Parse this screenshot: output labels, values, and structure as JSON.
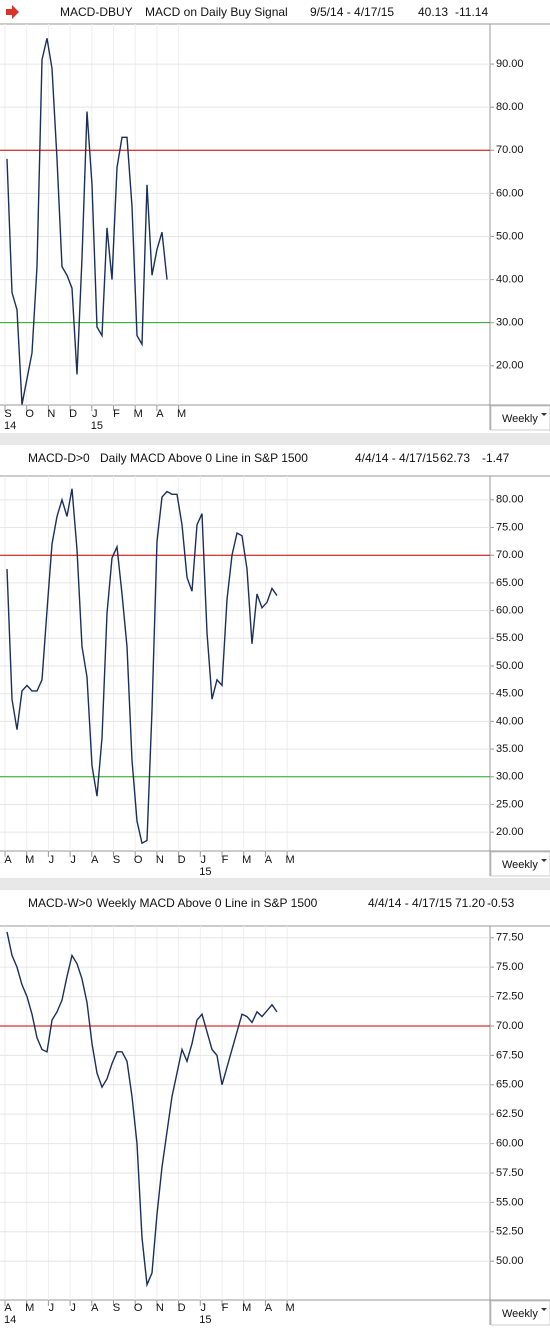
{
  "chart_data": [
    {
      "type": "line",
      "title": "MACD-DBUY",
      "subtitle": "MACD on Daily Buy Signal",
      "date_range": "9/5/14 - 4/17/15",
      "last": "40.13",
      "change": "-11.14",
      "period": "Weekly",
      "months": [
        "S",
        "O",
        "N",
        "D",
        "J",
        "F",
        "M",
        "A",
        "M"
      ],
      "years": [
        {
          "label": "14",
          "month": 0
        },
        {
          "label": "15",
          "month": 4
        }
      ],
      "series": [
        {
          "color": "#1a2f5a",
          "values": [
            68,
            37,
            33,
            11,
            17,
            23,
            43,
            91,
            96,
            89,
            68,
            43,
            41,
            38,
            18,
            45,
            79,
            62,
            29,
            27,
            52,
            40,
            66,
            73,
            73,
            57,
            27,
            25,
            62,
            41,
            47,
            51,
            40
          ]
        }
      ],
      "ylim": [
        10.9,
        99.3
      ],
      "yticks": [
        {
          "value": 20,
          "label": "20.00"
        },
        {
          "value": 30,
          "label": "30.00"
        },
        {
          "value": 40,
          "label": "40.00"
        },
        {
          "value": 50,
          "label": "50.00"
        },
        {
          "value": 60,
          "label": "60.00"
        },
        {
          "value": 70,
          "label": "70.00"
        },
        {
          "value": 80,
          "label": "80.00"
        },
        {
          "value": 90,
          "label": "90.00"
        }
      ],
      "reference_lines": [
        {
          "value": 70,
          "color": "#cc0000"
        },
        {
          "value": 30,
          "color": "#22aa22"
        }
      ],
      "grid": true
    },
    {
      "type": "line",
      "title": "MACD-D>0",
      "subtitle": "Daily MACD Above 0 Line in S&P 1500",
      "date_range": "4/4/14 - 4/17/15",
      "last": "62.73",
      "change": "-1.47",
      "period": "Weekly",
      "months": [
        "A",
        "M",
        "J",
        "J",
        "A",
        "S",
        "O",
        "N",
        "D",
        "J",
        "F",
        "M",
        "A",
        "M"
      ],
      "years": [
        {
          "label": "15",
          "month": 9
        }
      ],
      "series": [
        {
          "color": "#1a2f5a",
          "values": [
            67.5,
            44,
            38.5,
            45.5,
            46.5,
            45.5,
            45.5,
            47.5,
            60,
            72,
            77,
            80,
            77,
            82,
            71,
            53.5,
            48,
            32,
            26.5,
            37,
            59.5,
            69.5,
            71.5,
            63,
            53.5,
            33,
            22,
            18,
            18.5,
            42,
            72.5,
            80.5,
            81.5,
            81,
            81,
            75.5,
            66,
            63.5,
            75.5,
            77.5,
            56,
            44,
            47.5,
            46.5,
            62,
            70,
            74,
            73.5,
            67.5,
            54,
            63,
            60.5,
            61.5,
            64,
            62.7
          ]
        }
      ],
      "ylim": [
        16.6,
        84.3
      ],
      "yticks": [
        {
          "value": 20,
          "label": "20.00"
        },
        {
          "value": 25,
          "label": "25.00"
        },
        {
          "value": 30,
          "label": "30.00"
        },
        {
          "value": 35,
          "label": "35.00"
        },
        {
          "value": 40,
          "label": "40.00"
        },
        {
          "value": 45,
          "label": "45.00"
        },
        {
          "value": 50,
          "label": "50.00"
        },
        {
          "value": 55,
          "label": "55.00"
        },
        {
          "value": 60,
          "label": "60.00"
        },
        {
          "value": 65,
          "label": "65.00"
        },
        {
          "value": 70,
          "label": "70.00"
        },
        {
          "value": 75,
          "label": "75.00"
        },
        {
          "value": 80,
          "label": "80.00"
        }
      ],
      "reference_lines": [
        {
          "value": 70,
          "color": "#cc0000"
        },
        {
          "value": 30,
          "color": "#22aa22"
        }
      ],
      "grid": true
    },
    {
      "type": "line",
      "title": "MACD-W>0",
      "subtitle": "Weekly MACD Above 0 Line in S&P 1500",
      "date_range": "4/4/14 - 4/17/15",
      "last": "71.20",
      "change": "-0.53",
      "period": "Weekly",
      "months": [
        "A",
        "M",
        "J",
        "J",
        "A",
        "S",
        "O",
        "N",
        "D",
        "J",
        "F",
        "M",
        "A",
        "M"
      ],
      "years": [
        {
          "label": "14",
          "month": 0
        },
        {
          "label": "15",
          "month": 9
        }
      ],
      "series": [
        {
          "color": "#1a2f5a",
          "values": [
            78,
            76,
            75,
            73.5,
            72.5,
            71,
            69,
            68,
            67.8,
            70.5,
            71.2,
            72.2,
            74.2,
            76,
            75.3,
            74,
            72,
            68.5,
            66,
            64.8,
            65.5,
            66.8,
            67.8,
            67.8,
            67,
            64,
            60,
            52,
            48,
            49,
            54,
            58,
            61,
            64,
            66,
            68,
            67,
            68.5,
            70.5,
            71,
            69.5,
            68,
            67.5,
            65,
            66.5,
            68,
            69.5,
            71,
            70.8,
            70.3,
            71.2,
            70.8,
            71.3,
            71.8,
            71.2
          ]
        }
      ],
      "ylim": [
        46.7,
        78.5
      ],
      "yticks": [
        {
          "value": 50,
          "label": "50.00"
        },
        {
          "value": 52.5,
          "label": "52.50"
        },
        {
          "value": 55,
          "label": "55.00"
        },
        {
          "value": 57.5,
          "label": "57.50"
        },
        {
          "value": 60,
          "label": "60.00"
        },
        {
          "value": 62.5,
          "label": "62.50"
        },
        {
          "value": 65,
          "label": "65.00"
        },
        {
          "value": 67.5,
          "label": "67.50"
        },
        {
          "value": 70,
          "label": "70.00"
        },
        {
          "value": 72.5,
          "label": "72.50"
        },
        {
          "value": 75,
          "label": "75.00"
        },
        {
          "value": 77.5,
          "label": "77.50"
        }
      ],
      "reference_lines": [
        {
          "value": 70,
          "color": "#cc0000"
        }
      ],
      "grid": true
    }
  ]
}
